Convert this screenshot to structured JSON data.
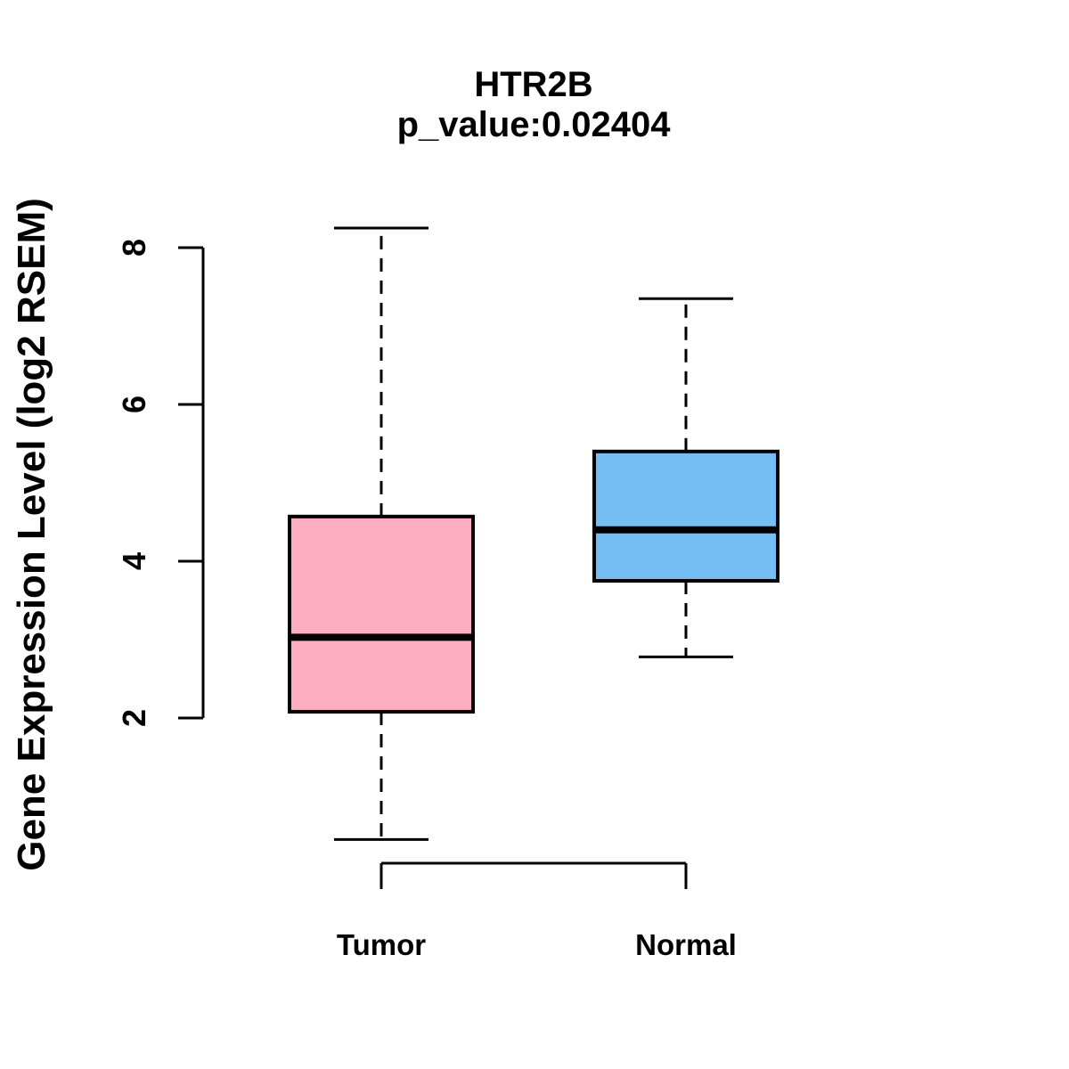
{
  "chart_data": {
    "type": "boxplot",
    "title": "HTR2B",
    "subtitle": "p_value:0.02404",
    "p_value": 0.02404,
    "ylabel": "Gene Expression Level (log2 RSEM)",
    "xlabel": "",
    "categories": [
      "Tumor",
      "Normal"
    ],
    "yticks": [
      2,
      4,
      6,
      8
    ],
    "ylim": [
      0.2,
      8.6
    ],
    "grid": false,
    "legend": "none",
    "stroke_color": "#000000",
    "background_color": "#ffffff",
    "series": [
      {
        "name": "Tumor",
        "fill_color": "#FCAEC0",
        "whisker_low": 0.45,
        "q1": 2.08,
        "median": 3.03,
        "q3": 4.57,
        "whisker_high": 8.25
      },
      {
        "name": "Normal",
        "fill_color": "#74BEF5",
        "whisker_low": 2.78,
        "q1": 3.75,
        "median": 4.4,
        "q3": 5.4,
        "whisker_high": 7.35
      }
    ]
  }
}
